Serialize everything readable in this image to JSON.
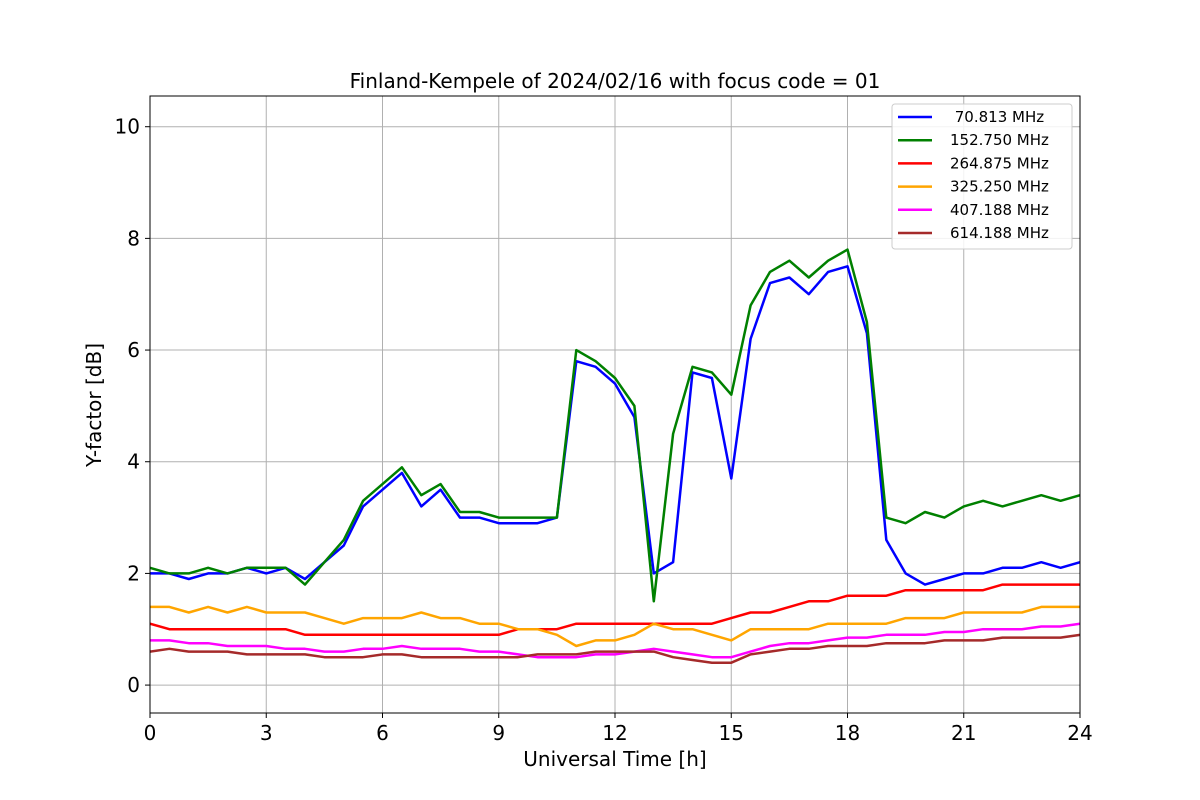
{
  "chart_data": {
    "type": "line",
    "title": "Finland-Kempele of 2024/02/16 with focus code = 01",
    "xlabel": "Universal Time [h]",
    "ylabel": "Y-factor [dB]",
    "xlim": [
      0,
      24
    ],
    "ylim": [
      -0.5,
      10.55
    ],
    "x_ticks": [
      "0",
      "3",
      "6",
      "9",
      "12",
      "15",
      "18",
      "21",
      "24"
    ],
    "y_ticks": [
      "0",
      "2",
      "4",
      "6",
      "8",
      "10"
    ],
    "grid": true,
    "legend_position": "top-right",
    "x": [
      0,
      0.5,
      1,
      1.5,
      2,
      2.5,
      3,
      3.5,
      4,
      4.5,
      5,
      5.5,
      6,
      6.5,
      7,
      7.5,
      8,
      8.5,
      9,
      9.5,
      10,
      10.5,
      11,
      11.5,
      12,
      12.5,
      13,
      13.5,
      14,
      14.5,
      15,
      15.5,
      16,
      16.5,
      17,
      17.5,
      18,
      18.5,
      19,
      19.5,
      20,
      20.5,
      21,
      21.5,
      22,
      22.5,
      23,
      23.5,
      24
    ],
    "series": [
      {
        "name": " 70.813 MHz",
        "color": "#0000ff",
        "values": [
          2.0,
          2.0,
          1.9,
          2.0,
          2.0,
          2.1,
          2.0,
          2.1,
          1.9,
          2.2,
          2.5,
          3.2,
          3.5,
          3.8,
          3.2,
          3.5,
          3.0,
          3.0,
          2.9,
          2.9,
          2.9,
          3.0,
          5.8,
          5.7,
          5.4,
          4.8,
          2.0,
          2.2,
          5.6,
          5.5,
          3.7,
          6.2,
          7.2,
          7.3,
          7.0,
          7.4,
          7.5,
          6.3,
          2.6,
          2.0,
          1.8,
          1.9,
          2.0,
          2.0,
          2.1,
          2.1,
          2.2,
          2.1,
          2.2
        ]
      },
      {
        "name": "152.750 MHz",
        "color": "#008000",
        "values": [
          2.1,
          2.0,
          2.0,
          2.1,
          2.0,
          2.1,
          2.1,
          2.1,
          1.8,
          2.2,
          2.6,
          3.3,
          3.6,
          3.9,
          3.4,
          3.6,
          3.1,
          3.1,
          3.0,
          3.0,
          3.0,
          3.0,
          6.0,
          5.8,
          5.5,
          5.0,
          1.5,
          4.5,
          5.7,
          5.6,
          5.2,
          6.8,
          7.4,
          7.6,
          7.3,
          7.6,
          7.8,
          6.5,
          3.0,
          2.9,
          3.1,
          3.0,
          3.2,
          3.3,
          3.2,
          3.3,
          3.4,
          3.3,
          3.4
        ]
      },
      {
        "name": "264.875 MHz",
        "color": "#ff0000",
        "values": [
          1.1,
          1.0,
          1.0,
          1.0,
          1.0,
          1.0,
          1.0,
          1.0,
          0.9,
          0.9,
          0.9,
          0.9,
          0.9,
          0.9,
          0.9,
          0.9,
          0.9,
          0.9,
          0.9,
          1.0,
          1.0,
          1.0,
          1.1,
          1.1,
          1.1,
          1.1,
          1.1,
          1.1,
          1.1,
          1.1,
          1.2,
          1.3,
          1.3,
          1.4,
          1.5,
          1.5,
          1.6,
          1.6,
          1.6,
          1.7,
          1.7,
          1.7,
          1.7,
          1.7,
          1.8,
          1.8,
          1.8,
          1.8,
          1.8
        ]
      },
      {
        "name": "325.250 MHz",
        "color": "#ffa500",
        "values": [
          1.4,
          1.4,
          1.3,
          1.4,
          1.3,
          1.4,
          1.3,
          1.3,
          1.3,
          1.2,
          1.1,
          1.2,
          1.2,
          1.2,
          1.3,
          1.2,
          1.2,
          1.1,
          1.1,
          1.0,
          1.0,
          0.9,
          0.7,
          0.8,
          0.8,
          0.9,
          1.1,
          1.0,
          1.0,
          0.9,
          0.8,
          1.0,
          1.0,
          1.0,
          1.0,
          1.1,
          1.1,
          1.1,
          1.1,
          1.2,
          1.2,
          1.2,
          1.3,
          1.3,
          1.3,
          1.3,
          1.4,
          1.4,
          1.4
        ]
      },
      {
        "name": "407.188 MHz",
        "color": "#ff00ff",
        "values": [
          0.8,
          0.8,
          0.75,
          0.75,
          0.7,
          0.7,
          0.7,
          0.65,
          0.65,
          0.6,
          0.6,
          0.65,
          0.65,
          0.7,
          0.65,
          0.65,
          0.65,
          0.6,
          0.6,
          0.55,
          0.5,
          0.5,
          0.5,
          0.55,
          0.55,
          0.6,
          0.65,
          0.6,
          0.55,
          0.5,
          0.5,
          0.6,
          0.7,
          0.75,
          0.75,
          0.8,
          0.85,
          0.85,
          0.9,
          0.9,
          0.9,
          0.95,
          0.95,
          1.0,
          1.0,
          1.0,
          1.05,
          1.05,
          1.1
        ]
      },
      {
        "name": "614.188 MHz",
        "color": "#a52a2a",
        "values": [
          0.6,
          0.65,
          0.6,
          0.6,
          0.6,
          0.55,
          0.55,
          0.55,
          0.55,
          0.5,
          0.5,
          0.5,
          0.55,
          0.55,
          0.5,
          0.5,
          0.5,
          0.5,
          0.5,
          0.5,
          0.55,
          0.55,
          0.55,
          0.6,
          0.6,
          0.6,
          0.6,
          0.5,
          0.45,
          0.4,
          0.4,
          0.55,
          0.6,
          0.65,
          0.65,
          0.7,
          0.7,
          0.7,
          0.75,
          0.75,
          0.75,
          0.8,
          0.8,
          0.8,
          0.85,
          0.85,
          0.85,
          0.85,
          0.9
        ]
      }
    ]
  }
}
